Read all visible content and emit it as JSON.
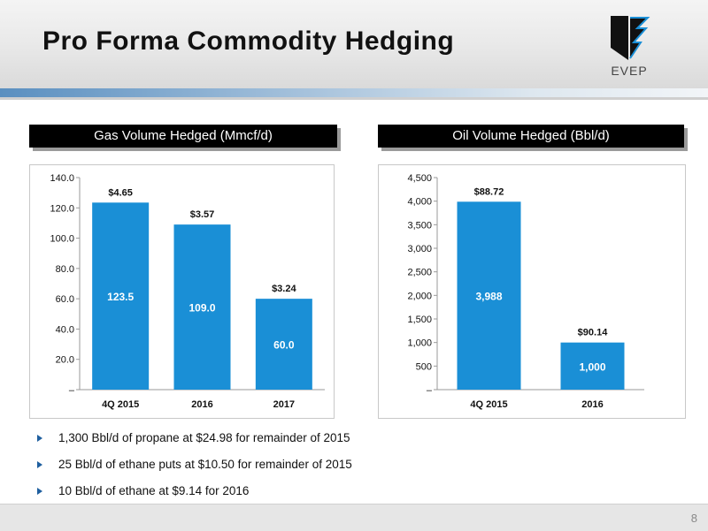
{
  "title": "Pro Forma Commodity Hedging",
  "logo": {
    "text": "EVEP"
  },
  "page_number": "8",
  "bullets": [
    "1,300 Bbl/d of propane at $24.98 for remainder of 2015",
    "25 Bbl/d of ethane puts at $10.50 for remainder of 2015",
    "10 Bbl/d of ethane at $9.14 for 2016"
  ],
  "colors": {
    "bar": "#1a8fd6",
    "bar_label": "#ffffff",
    "title_bg": "#000000"
  },
  "chart_data": [
    {
      "type": "bar",
      "title": "Gas Volume Hedged (Mmcf/d)",
      "categories": [
        "4Q 2015",
        "2016",
        "2017"
      ],
      "values": [
        123.5,
        109.0,
        60.0
      ],
      "value_labels": [
        "123.5",
        "109.0",
        "60.0"
      ],
      "price_labels": [
        "$4.65",
        "$3.57",
        "$3.24"
      ],
      "ylim": [
        0,
        140
      ],
      "yticks": [
        0,
        20,
        40,
        60,
        80,
        100,
        120,
        140
      ],
      "ytick_labels": [
        "–",
        "20.0",
        "40.0",
        "60.0",
        "80.0",
        "100.0",
        "120.0",
        "140.0"
      ],
      "grid": false
    },
    {
      "type": "bar",
      "title": "Oil Volume Hedged (Bbl/d)",
      "categories": [
        "4Q 2015",
        "2016"
      ],
      "values": [
        3988,
        1000
      ],
      "value_labels": [
        "3,988",
        "1,000"
      ],
      "price_labels": [
        "$88.72",
        "$90.14"
      ],
      "ylim": [
        0,
        4500
      ],
      "yticks": [
        0,
        500,
        1000,
        1500,
        2000,
        2500,
        3000,
        3500,
        4000,
        4500
      ],
      "ytick_labels": [
        "–",
        "500",
        "1,000",
        "1,500",
        "2,000",
        "2,500",
        "3,000",
        "3,500",
        "4,000",
        "4,500"
      ],
      "grid": false
    }
  ]
}
